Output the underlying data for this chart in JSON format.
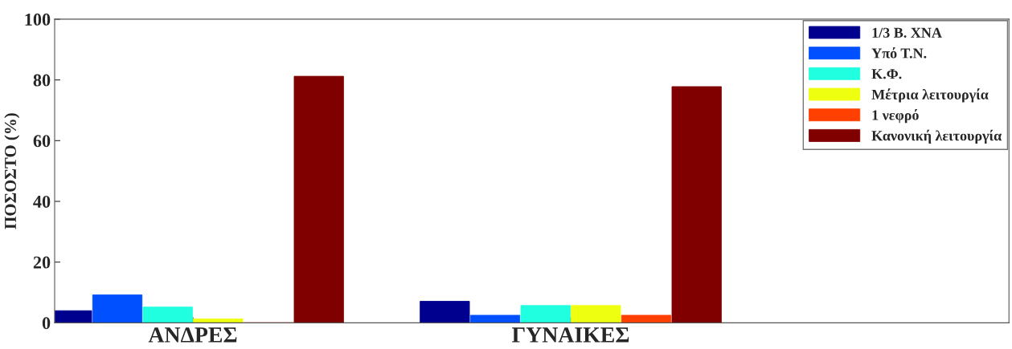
{
  "chart_data": {
    "type": "bar",
    "ylabel": "ΠΟΣΟΣΤΟ (%)",
    "categories": [
      "ΑΝΔΡΕΣ",
      "ΓΥΝΑΙΚΕΣ"
    ],
    "series": [
      {
        "name": "1/3 Β. ΧΝΑ",
        "color": "#00008f",
        "values": [
          4.0,
          7.1
        ]
      },
      {
        "name": "Υπό Τ.Ν.",
        "color": "#0050ff",
        "values": [
          9.2,
          2.5
        ]
      },
      {
        "name": "Κ.Φ.",
        "color": "#20ffdf",
        "values": [
          5.2,
          5.7
        ]
      },
      {
        "name": "Μέτρια λειτουργία",
        "color": "#efff10",
        "values": [
          1.3,
          5.7
        ]
      },
      {
        "name": "1 νεφρό",
        "color": "#ff4000",
        "values": [
          0,
          2.5
        ]
      },
      {
        "name": "Κανονική λειτουργία",
        "color": "#800000",
        "values": [
          81.2,
          77.8
        ]
      }
    ],
    "ylim": [
      0,
      100
    ],
    "yticks": [
      0,
      20,
      40,
      60,
      80,
      100
    ],
    "grid": false,
    "legend": "top right"
  }
}
